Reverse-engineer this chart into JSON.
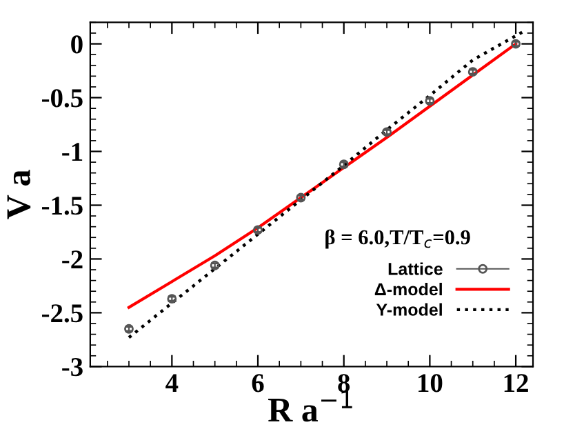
{
  "chart_data": {
    "type": "line",
    "xlabel": "R a$^{−1}$",
    "ylabel": "V a",
    "xlim": [
      2.1,
      12.4
    ],
    "ylim": [
      -3,
      0.2
    ],
    "xticks": [
      4,
      6,
      8,
      10,
      12
    ],
    "yticks": [
      {
        "value": -3,
        "label": "-3"
      },
      {
        "value": -2.5,
        "label": "-2.5"
      },
      {
        "value": -2,
        "label": "-2"
      },
      {
        "value": -1.5,
        "label": "-1.5"
      },
      {
        "value": -1,
        "label": "-1"
      },
      {
        "value": -0.5,
        "label": "-0.5"
      },
      {
        "value": 0,
        "label": "0"
      }
    ],
    "annotations": [
      {
        "text": "β = 6.0,T/T$_{c}$=0.9"
      }
    ],
    "legend": "right",
    "grid": false,
    "series": [
      {
        "name": "Lattice",
        "type": "scatter",
        "marker": "circle",
        "color": "#555555",
        "x": [
          3,
          4,
          5,
          6,
          7,
          8,
          9,
          10,
          11,
          12
        ],
        "values": [
          -2.65,
          -2.37,
          -2.06,
          -1.73,
          -1.43,
          -1.12,
          -0.82,
          -0.53,
          -0.26,
          0.0
        ],
        "errors": [
          0.02,
          0.02,
          0.02,
          0.02,
          0.02,
          0.02,
          0.02,
          0.02,
          0.02,
          0.02
        ]
      },
      {
        "name": "Δ-model",
        "line_style": "solid",
        "color": "#ff0000",
        "x": [
          3,
          4,
          5,
          6,
          7,
          8,
          9,
          10,
          11,
          12
        ],
        "values": [
          -2.45,
          -2.21,
          -1.97,
          -1.71,
          -1.43,
          -1.15,
          -0.87,
          -0.58,
          -0.29,
          0.0
        ]
      },
      {
        "name": "Y-model",
        "line_style": "dotted",
        "color": "#000000",
        "x": [
          3,
          4,
          5,
          6,
          7,
          8,
          9,
          10,
          11,
          12.2
        ],
        "values": [
          -2.73,
          -2.41,
          -2.09,
          -1.77,
          -1.45,
          -1.13,
          -0.8,
          -0.48,
          -0.15,
          0.12
        ]
      }
    ]
  }
}
